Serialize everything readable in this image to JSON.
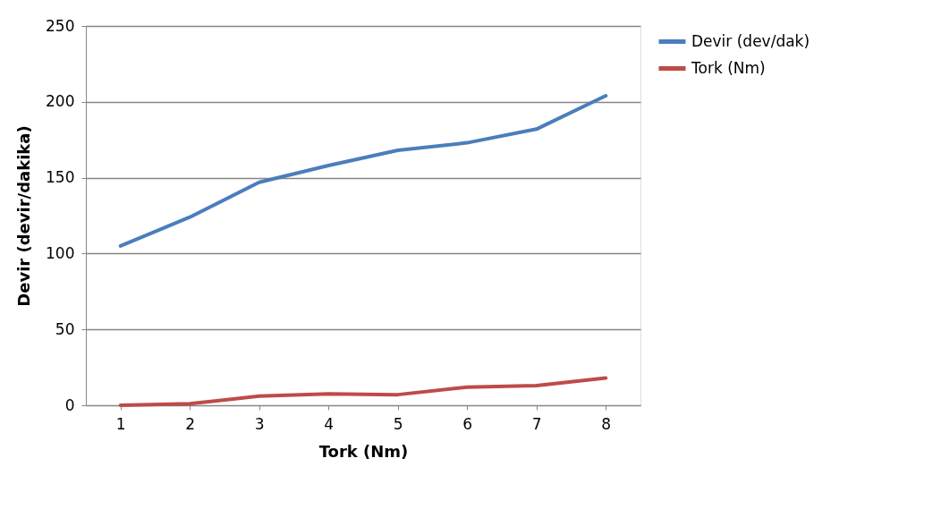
{
  "chart_data": {
    "type": "line",
    "xlabel": "Tork (Nm)",
    "ylabel": "Devir (devir/dakika)",
    "categories": [
      "1",
      "2",
      "3",
      "4",
      "5",
      "6",
      "7",
      "8"
    ],
    "series": [
      {
        "name": "Devir (dev/dak)",
        "color": "#4a7ebb",
        "values": [
          105,
          124,
          147,
          158,
          168,
          173,
          182,
          204
        ]
      },
      {
        "name": "Tork (Nm)",
        "color": "#be4b48",
        "values": [
          0,
          1,
          6,
          7.5,
          7,
          12,
          13,
          18
        ]
      }
    ],
    "ylim": [
      0,
      250
    ],
    "yticks": [
      0,
      50,
      100,
      150,
      200,
      250
    ],
    "grid": "y",
    "legend": "right",
    "marker": "none",
    "line_style": "solid"
  }
}
